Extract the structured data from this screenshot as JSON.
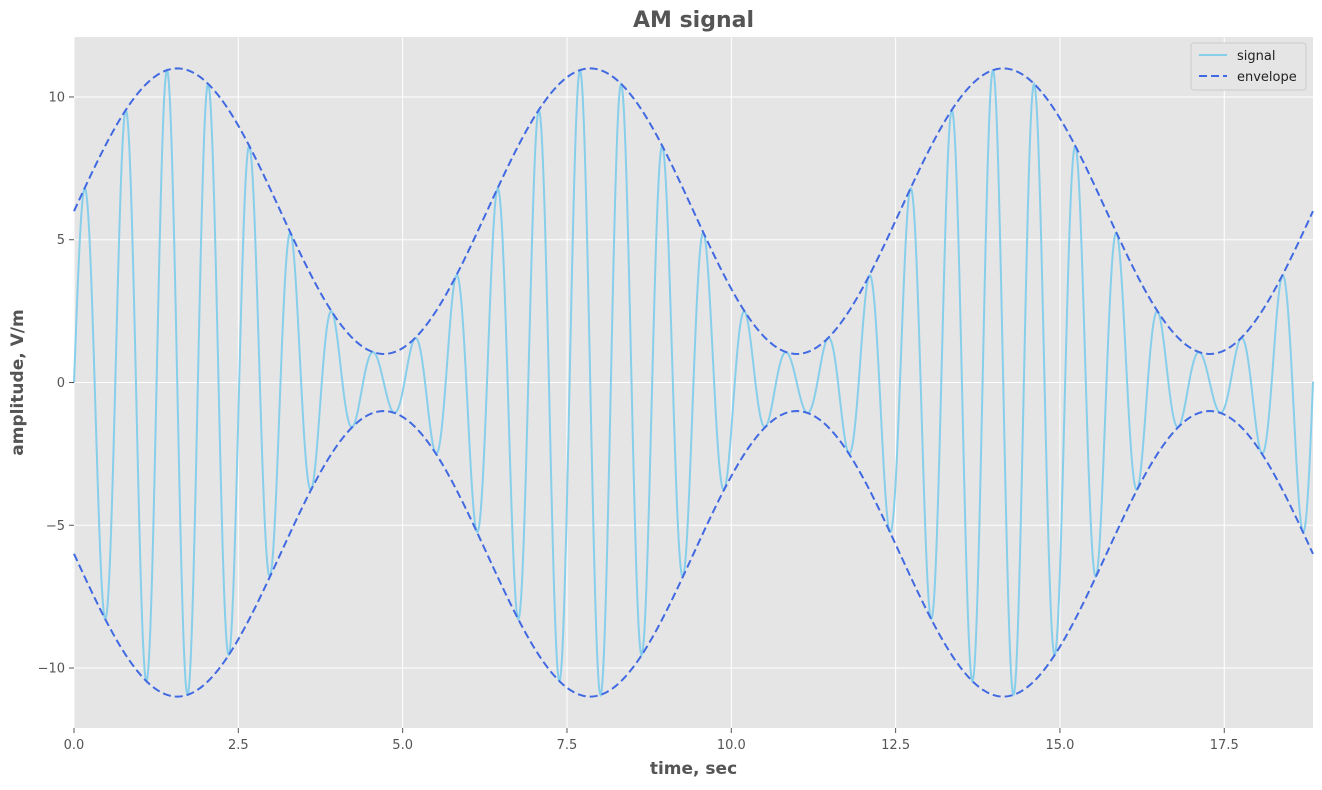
{
  "chart_data": {
    "type": "line",
    "title": "AM signal",
    "xlabel": "time, sec",
    "ylabel": "amplitude, V/m",
    "xlim": [
      0,
      18.85
    ],
    "ylim": [
      -12.1,
      12.1
    ],
    "xticks": [
      0,
      2.5,
      5,
      7.5,
      10,
      12.5,
      15,
      17.5
    ],
    "xtick_labels": [
      "0.0",
      "2.5",
      "5.0",
      "7.5",
      "10.0",
      "12.5",
      "15.0",
      "17.5"
    ],
    "yticks": [
      -10,
      -5,
      0,
      5,
      10
    ],
    "ytick_labels": [
      "−10",
      "−5",
      "0",
      "5",
      "10"
    ],
    "grid": true,
    "legend_position": "top-right",
    "series": [
      {
        "name": "signal",
        "color": "#87ceeb",
        "style": "solid",
        "model": "(6 + 5*sin(t)) * sin(10*t)",
        "samples": 2000
      },
      {
        "name": "envelope",
        "color": "#4169e1",
        "style": "dashed",
        "model": "±(6 + 5*sin(t))",
        "samples": 600
      }
    ]
  }
}
